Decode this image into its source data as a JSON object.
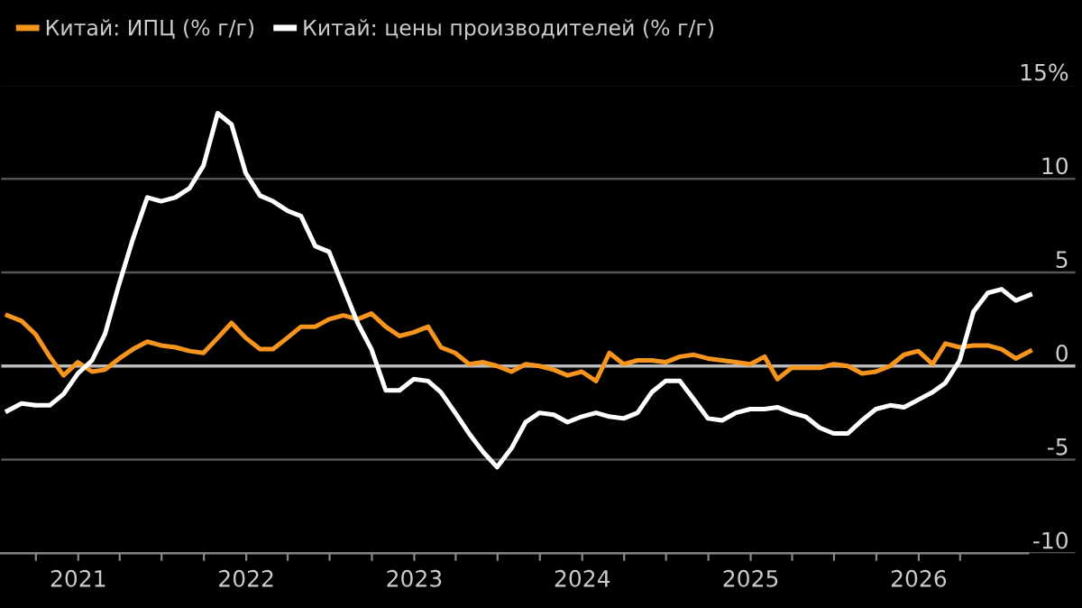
{
  "chart_data": {
    "type": "line",
    "x": [
      "2020-07-31",
      "2020-08-31",
      "2020-09-30",
      "2020-10-31",
      "2020-11-30",
      "2020-12-31",
      "2021-01-31",
      "2021-02-28",
      "2021-03-31",
      "2021-04-30",
      "2021-05-31",
      "2021-06-30",
      "2021-07-31",
      "2021-08-31",
      "2021-09-30",
      "2021-10-31",
      "2021-11-30",
      "2021-12-31",
      "2022-01-31",
      "2022-02-28",
      "2022-03-31",
      "2022-04-30",
      "2022-05-31",
      "2022-06-30",
      "2022-07-31",
      "2022-08-31",
      "2022-09-30",
      "2022-10-31",
      "2022-11-30",
      "2022-12-31",
      "2023-01-31",
      "2023-02-28",
      "2023-03-31",
      "2023-04-30",
      "2023-05-31",
      "2023-06-30",
      "2023-07-31",
      "2023-08-31",
      "2023-09-30",
      "2023-10-31",
      "2023-11-30",
      "2023-12-31",
      "2024-01-31",
      "2024-02-29",
      "2024-03-31",
      "2024-04-30",
      "2024-05-31",
      "2024-06-30",
      "2024-07-31",
      "2024-08-31",
      "2024-09-30",
      "2024-10-31",
      "2024-11-30",
      "2024-12-31",
      "2025-01-31",
      "2025-02-28",
      "2025-03-31",
      "2025-04-30",
      "2025-05-31",
      "2025-06-30",
      "2025-07-31",
      "2025-08-31",
      "2025-09-30",
      "2025-10-31",
      "2025-11-30",
      "2025-12-31",
      "2026-01-31",
      "2026-02-28",
      "2026-03-31",
      "2026-04-30",
      "2026-05-31",
      "2026-06-30",
      "2026-07-31",
      "2026-08-31"
    ],
    "series": [
      {
        "name": "Китай: ИПЦ (% г/г)",
        "color": "#f5951d",
        "values": [
          2.7,
          2.4,
          1.7,
          0.5,
          -0.5,
          0.2,
          -0.3,
          -0.2,
          0.4,
          0.9,
          1.3,
          1.1,
          1.0,
          0.8,
          0.7,
          1.5,
          2.3,
          1.5,
          0.9,
          0.9,
          1.5,
          2.1,
          2.1,
          2.5,
          2.7,
          2.5,
          2.8,
          2.1,
          1.6,
          1.8,
          2.1,
          1.0,
          0.7,
          0.1,
          0.2,
          0.0,
          -0.3,
          0.1,
          0.0,
          -0.2,
          -0.5,
          -0.3,
          -0.8,
          0.7,
          0.1,
          0.3,
          0.3,
          0.2,
          0.5,
          0.6,
          0.4,
          0.3,
          0.2,
          0.1,
          0.5,
          -0.7,
          -0.1,
          -0.1,
          -0.1,
          0.1,
          0.0,
          -0.4,
          -0.3,
          0.0,
          0.6,
          0.8,
          0.1,
          1.2,
          1.0,
          1.1,
          1.1,
          0.9,
          0.4,
          0.8
        ]
      },
      {
        "name": "Китай: цены производителей (% г/г)",
        "color": "#ffffff",
        "values": [
          -2.4,
          -2.0,
          -2.1,
          -2.1,
          -1.5,
          -0.4,
          0.3,
          1.7,
          4.4,
          6.8,
          9.0,
          8.8,
          9.0,
          9.5,
          10.7,
          13.5,
          12.9,
          10.3,
          9.1,
          8.8,
          8.3,
          8.0,
          6.4,
          6.1,
          4.2,
          2.3,
          0.9,
          -1.3,
          -1.3,
          -0.7,
          -0.8,
          -1.4,
          -2.5,
          -3.6,
          -4.6,
          -5.4,
          -4.4,
          -3.0,
          -2.5,
          -2.6,
          -3.0,
          -2.7,
          -2.5,
          -2.7,
          -2.8,
          -2.5,
          -1.4,
          -0.8,
          -0.8,
          -1.8,
          -2.8,
          -2.9,
          -2.5,
          -2.3,
          -2.3,
          -2.2,
          -2.5,
          -2.7,
          -3.3,
          -3.6,
          -3.6,
          -2.9,
          -2.3,
          -2.1,
          -2.2,
          -1.8,
          -1.4,
          -0.9,
          0.3,
          2.9,
          3.9,
          4.1,
          3.5,
          3.8
        ]
      }
    ],
    "xlim": [
      "2020-07-15",
      "2026-12-10"
    ],
    "xticks": [
      {
        "value": "2020-10-01",
        "label": null
      },
      {
        "value": "2021-01-01",
        "label": "2021"
      },
      {
        "value": "2021-04-01",
        "label": null
      },
      {
        "value": "2021-07-01",
        "label": null
      },
      {
        "value": "2021-10-01",
        "label": null
      },
      {
        "value": "2022-01-01",
        "label": "2022"
      },
      {
        "value": "2022-04-01",
        "label": null
      },
      {
        "value": "2022-07-01",
        "label": null
      },
      {
        "value": "2022-10-01",
        "label": null
      },
      {
        "value": "2023-01-01",
        "label": "2023"
      },
      {
        "value": "2023-04-01",
        "label": null
      },
      {
        "value": "2023-07-01",
        "label": null
      },
      {
        "value": "2023-10-01",
        "label": null
      },
      {
        "value": "2024-01-01",
        "label": "2024"
      },
      {
        "value": "2024-04-01",
        "label": null
      },
      {
        "value": "2024-07-01",
        "label": null
      },
      {
        "value": "2024-10-01",
        "label": null
      },
      {
        "value": "2025-01-01",
        "label": "2025"
      },
      {
        "value": "2025-04-01",
        "label": null
      },
      {
        "value": "2025-07-01",
        "label": null
      },
      {
        "value": "2025-10-01",
        "label": null
      },
      {
        "value": "2026-01-01",
        "label": "2026"
      },
      {
        "value": "2026-04-01",
        "label": null
      }
    ],
    "ylim": [
      -10,
      15
    ],
    "yticks": [
      {
        "value": -10,
        "label": "-10"
      },
      -5,
      0,
      5,
      10,
      {
        "value": 15,
        "label": "15%"
      }
    ],
    "ref_lines": [
      {
        "axis": "y",
        "value": 0,
        "color": "#bbbbbb"
      }
    ],
    "grid": "y",
    "legend": "top left",
    "marker": "none",
    "line_style": "solid"
  }
}
